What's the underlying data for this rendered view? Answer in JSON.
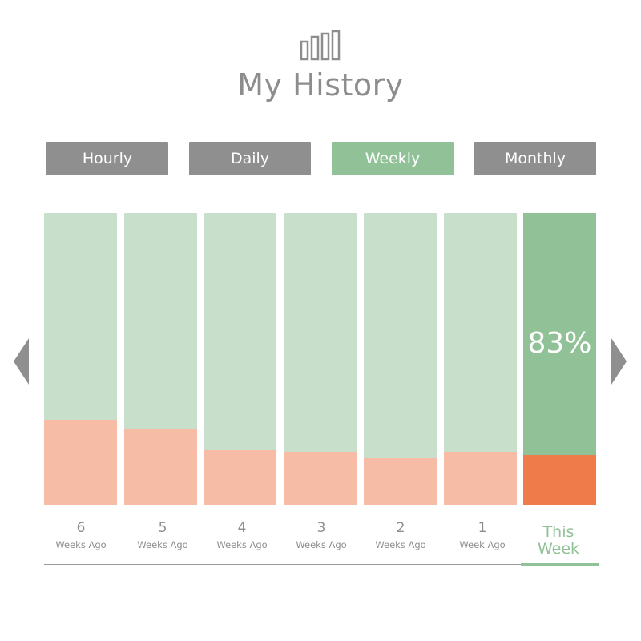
{
  "header": {
    "title": "My History",
    "icon": "bar-chart-icon"
  },
  "tabs": [
    {
      "label": "Hourly",
      "active": false
    },
    {
      "label": "Daily",
      "active": false
    },
    {
      "label": "Weekly",
      "active": true
    },
    {
      "label": "Monthly",
      "active": false
    }
  ],
  "navigation": {
    "prev_icon": "chevron-left-icon",
    "next_icon": "chevron-right-icon"
  },
  "colors": {
    "accent_green": "#91c197",
    "light_green": "#c8dfcc",
    "light_salmon": "#f6bca6",
    "orange": "#ef7b4a",
    "gray": "#8f8f8f"
  },
  "chart_data": {
    "type": "bar",
    "stacked": true,
    "categories": [
      "6 Weeks Ago",
      "5 Weeks Ago",
      "4 Weeks Ago",
      "3 Weeks Ago",
      "2 Weeks Ago",
      "1 Week Ago",
      "This Week"
    ],
    "series": [
      {
        "values": [
          71,
          74,
          81,
          82,
          84,
          82,
          83
        ]
      },
      {
        "values": [
          29,
          26,
          19,
          18,
          16,
          18,
          17
        ]
      }
    ],
    "ylim": [
      0,
      100
    ],
    "highlight_index": 6,
    "highlight_label": "83%"
  },
  "bar_labels": [
    {
      "num": "6",
      "sub": "Weeks Ago"
    },
    {
      "num": "5",
      "sub": "Weeks Ago"
    },
    {
      "num": "4",
      "sub": "Weeks Ago"
    },
    {
      "num": "3",
      "sub": "Weeks Ago"
    },
    {
      "num": "2",
      "sub": "Weeks Ago"
    },
    {
      "num": "1",
      "sub": "Week Ago"
    }
  ],
  "current_label": {
    "line1": "This",
    "line2": "Week"
  }
}
